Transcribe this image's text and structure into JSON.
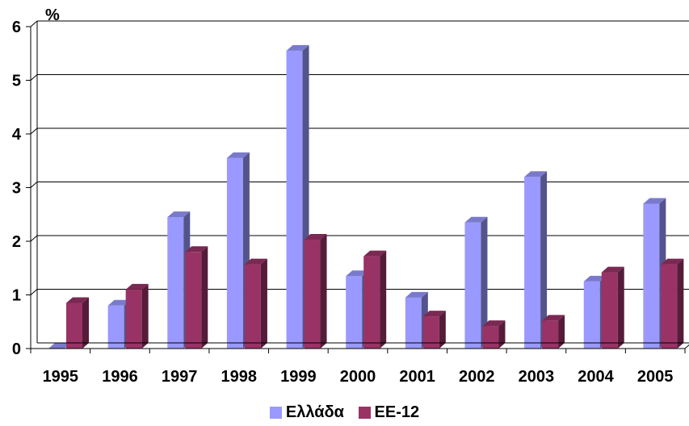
{
  "chart_data": {
    "type": "bar",
    "ylabel": "%",
    "ylim": [
      0,
      6
    ],
    "yticks": [
      0,
      1,
      2,
      3,
      4,
      5,
      6
    ],
    "grid": true,
    "legend_position": "bottom",
    "categories": [
      "1995",
      "1996",
      "1997",
      "1998",
      "1999",
      "2000",
      "2001",
      "2002",
      "2003",
      "2004",
      "2005"
    ],
    "series": [
      {
        "name": "Ελλάδα",
        "color": "#9999ff",
        "values": [
          0,
          0.8,
          2.45,
          3.55,
          5.55,
          1.35,
          0.95,
          2.35,
          3.2,
          1.25,
          2.7
        ]
      },
      {
        "name": "ΕΕ-12",
        "color": "#993366",
        "values": [
          0.85,
          1.1,
          1.8,
          1.57,
          2.03,
          1.72,
          0.6,
          0.42,
          0.52,
          1.42,
          1.57
        ]
      }
    ]
  }
}
